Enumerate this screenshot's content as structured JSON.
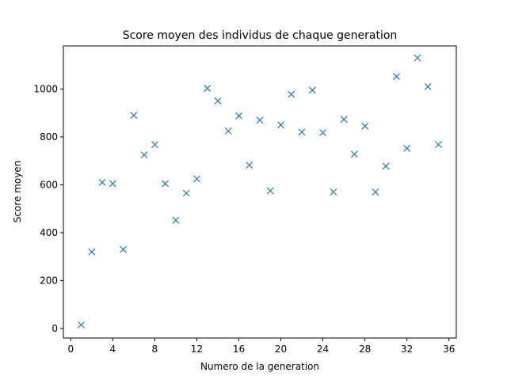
{
  "chart_data": {
    "type": "scatter",
    "title": "Score moyen des individus de chaque generation",
    "xlabel": "Numero de la generation",
    "ylabel": "Score moyen",
    "xlim": [
      -0.7,
      36.7
    ],
    "ylim": [
      -40,
      1180
    ],
    "xticks": [
      0,
      4,
      8,
      12,
      16,
      20,
      24,
      28,
      32,
      36
    ],
    "yticks": [
      0,
      200,
      400,
      600,
      800,
      1000
    ],
    "grid": false,
    "marker": "x",
    "color": "#1f77b4",
    "series": [
      {
        "x": [
          1,
          2,
          3,
          4,
          5,
          6,
          7,
          8,
          9,
          10,
          11,
          12,
          13,
          14,
          15,
          16,
          17,
          18,
          19,
          20,
          21,
          22,
          23,
          24,
          25,
          26,
          27,
          28,
          29,
          30,
          31,
          32,
          33,
          34,
          35
        ],
        "y": [
          15,
          320,
          610,
          605,
          330,
          890,
          725,
          768,
          605,
          452,
          565,
          625,
          1003,
          950,
          825,
          888,
          682,
          870,
          575,
          850,
          978,
          820,
          995,
          818,
          570,
          873,
          728,
          845,
          570,
          678,
          1052,
          752,
          1130,
          1010,
          768
        ]
      }
    ]
  }
}
